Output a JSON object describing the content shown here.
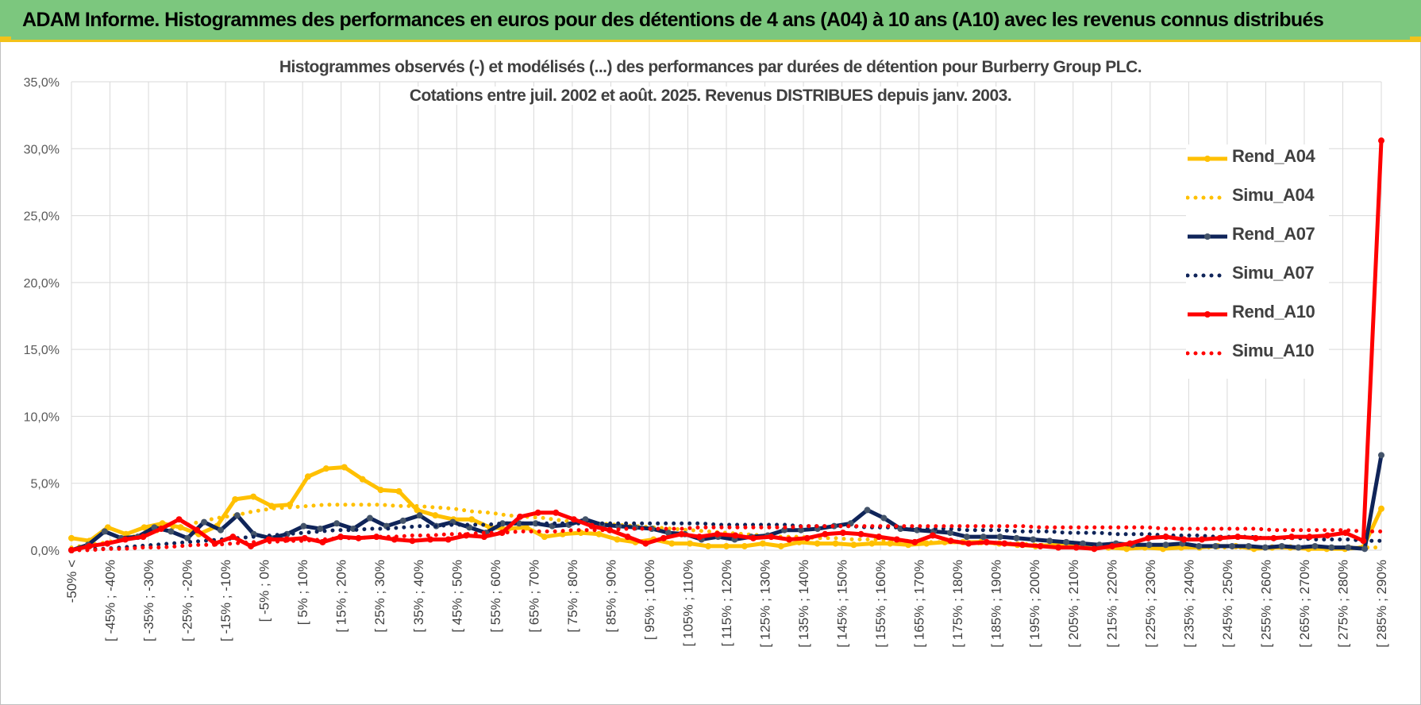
{
  "banner": {
    "title": "ADAM Informe. Histogrammes des performances en euros pour des détentions de 4 ans (A04) à 10 ans (A10) avec les revenus connus distribués"
  },
  "colors": {
    "banner_bg": "#7cc77e",
    "banner_border": "#f3c21a",
    "A04": "#ffc000",
    "A07": "#0f2459",
    "A10": "#ff0000",
    "grid": "#d9d9d9"
  },
  "chart_data": {
    "type": "line",
    "title": "Histogrammes observés (-) et modélisés (...) des performances par durées de détention pour Burberry Group PLC.",
    "subtitle": "Cotations entre juil. 2002 et août. 2025. Revenus DISTRIBUES depuis janv. 2003.",
    "xlabel": "",
    "ylabel": "",
    "ylim": [
      0,
      35
    ],
    "y_ticks": [
      "0,0%",
      "5,0%",
      "10,0%",
      "15,0%",
      "20,0%",
      "25,0%",
      "30,0%",
      "35,0%"
    ],
    "grid": true,
    "legend_position": "right",
    "x_labels_shown": [
      "-50% <",
      "[ -45% ; -40%",
      "[ -35% ; -30%",
      "[ -25% ; -20%",
      "[ -15% ; -10%",
      "[ -5% ; 0%",
      "[ 5% ; 10%",
      "[ 15% ; 20%",
      "[ 25% ; 30%",
      "[ 35% ; 40%",
      "[ 45% ; 50%",
      "[ 55% ; 60%",
      "[ 65% ; 70%",
      "[ 75% ; 80%",
      "[ 85% ; 90%",
      "[ 95% ; 100%",
      "[ 105% ; 110%",
      "[ 115% ; 120%",
      "[ 125% ; 130%",
      "[ 135% ; 140%",
      "[ 145% ; 150%",
      "[ 155% ; 160%",
      "[ 165% ; 170%",
      "[ 175% ; 180%",
      "[ 185% ; 190%",
      "[ 195% ; 200%",
      "[ 205% ; 210%",
      "[ 215% ; 220%",
      "[ 225% ; 230%",
      "[ 235% ; 240%",
      "[ 245% ; 250%",
      "[ 255% ; 260%",
      "[ 265% ; 270%",
      "[ 275% ; 280%",
      "[ 285% ; 290%"
    ],
    "series": [
      {
        "name": "Rend_A04",
        "style": "solid",
        "color": "#ffc000",
        "marker": true,
        "values": [
          0.9,
          0.7,
          1.7,
          1.2,
          1.7,
          2.0,
          1.7,
          1.2,
          1.8,
          3.8,
          4.0,
          3.3,
          3.4,
          5.5,
          6.1,
          6.2,
          5.3,
          4.5,
          4.4,
          3.0,
          2.6,
          2.3,
          2.3,
          1.7,
          1.6,
          1.7,
          1.0,
          1.2,
          1.3,
          1.2,
          0.8,
          0.6,
          0.8,
          0.5,
          0.5,
          0.3,
          0.3,
          0.3,
          0.5,
          0.3,
          0.6,
          0.5,
          0.5,
          0.4,
          0.5,
          0.5,
          0.4,
          0.5,
          0.6,
          0.6,
          0.6,
          0.5,
          0.4,
          0.3,
          0.4,
          0.3,
          0.2,
          0.2,
          0.1,
          0.2,
          0.1,
          0.2,
          0.2,
          0.3,
          0.3,
          0.1,
          0.2,
          0.2,
          0.1,
          0.1,
          0.1,
          0.2,
          3.1
        ]
      },
      {
        "name": "Simu_A04",
        "style": "dotted",
        "color": "#ffc000",
        "marker": false,
        "values": [
          0.2,
          0.4,
          0.6,
          0.9,
          1.2,
          1.5,
          1.8,
          2.1,
          2.4,
          2.6,
          2.9,
          3.1,
          3.2,
          3.3,
          3.4,
          3.4,
          3.4,
          3.4,
          3.3,
          3.3,
          3.2,
          3.1,
          2.9,
          2.8,
          2.6,
          2.5,
          2.4,
          2.2,
          2.1,
          2.0,
          1.9,
          1.8,
          1.7,
          1.6,
          1.5,
          1.4,
          1.3,
          1.2,
          1.1,
          1.0,
          1.0,
          0.9,
          0.9,
          0.8,
          0.8,
          0.7,
          0.7,
          0.6,
          0.6,
          0.6,
          0.5,
          0.5,
          0.5,
          0.4,
          0.4,
          0.4,
          0.4,
          0.3,
          0.3,
          0.3,
          0.3,
          0.3,
          0.2,
          0.2,
          0.2,
          0.2,
          0.2,
          0.2,
          0.2,
          0.2,
          0.2,
          0.2,
          0.2
        ]
      },
      {
        "name": "Rend_A07",
        "style": "solid",
        "color": "#0f2459",
        "marker": true,
        "values": [
          0.0,
          0.4,
          1.4,
          0.9,
          1.0,
          1.7,
          1.4,
          0.9,
          2.1,
          1.5,
          2.6,
          1.2,
          0.9,
          1.2,
          1.8,
          1.6,
          2.0,
          1.6,
          2.4,
          1.8,
          2.2,
          2.6,
          1.8,
          2.1,
          1.7,
          1.3,
          2.0,
          2.0,
          2.0,
          1.8,
          1.9,
          2.3,
          1.9,
          1.8,
          1.7,
          1.6,
          1.3,
          1.2,
          0.8,
          1.0,
          0.8,
          1.0,
          1.1,
          1.5,
          1.5,
          1.6,
          1.8,
          2.0,
          3.0,
          2.4,
          1.6,
          1.5,
          1.4,
          1.3,
          1.0,
          1.0,
          1.0,
          0.9,
          0.8,
          0.7,
          0.6,
          0.5,
          0.4,
          0.5,
          0.4,
          0.4,
          0.4,
          0.5,
          0.3,
          0.3,
          0.3,
          0.3,
          0.2,
          0.3,
          0.2,
          0.3,
          0.2,
          0.2,
          0.1,
          7.1
        ]
      },
      {
        "name": "Simu_A07",
        "style": "dotted",
        "color": "#0f2459",
        "marker": false,
        "values": [
          0.0,
          0.1,
          0.1,
          0.2,
          0.3,
          0.4,
          0.5,
          0.6,
          0.7,
          0.8,
          0.9,
          1.0,
          1.1,
          1.2,
          1.3,
          1.4,
          1.5,
          1.5,
          1.6,
          1.6,
          1.7,
          1.8,
          1.8,
          1.9,
          1.9,
          1.9,
          2.0,
          2.0,
          2.0,
          2.0,
          2.0,
          2.0,
          2.0,
          2.0,
          2.0,
          2.0,
          2.0,
          2.0,
          2.0,
          1.9,
          1.9,
          1.9,
          1.9,
          1.9,
          1.8,
          1.8,
          1.8,
          1.8,
          1.7,
          1.7,
          1.7,
          1.6,
          1.6,
          1.6,
          1.5,
          1.5,
          1.5,
          1.4,
          1.4,
          1.4,
          1.3,
          1.3,
          1.3,
          1.2,
          1.2,
          1.2,
          1.1,
          1.1,
          1.1,
          1.0,
          1.0,
          1.0,
          0.9,
          0.9,
          0.9,
          0.8,
          0.8,
          0.8,
          0.7,
          0.7
        ]
      },
      {
        "name": "Rend_A10",
        "style": "solid",
        "color": "#ff0000",
        "marker": true,
        "values": [
          0.0,
          0.3,
          0.5,
          0.8,
          1.0,
          1.6,
          2.3,
          1.5,
          0.5,
          1.0,
          0.3,
          0.8,
          0.8,
          0.9,
          0.6,
          1.0,
          0.9,
          1.0,
          0.8,
          0.7,
          0.8,
          0.8,
          1.1,
          1.0,
          1.3,
          2.5,
          2.8,
          2.8,
          2.3,
          1.8,
          1.5,
          1.0,
          0.5,
          0.9,
          1.2,
          1.0,
          1.2,
          1.1,
          0.9,
          1.0,
          0.8,
          0.9,
          1.2,
          1.3,
          1.2,
          1.0,
          0.8,
          0.6,
          1.1,
          0.7,
          0.5,
          0.6,
          0.5,
          0.4,
          0.3,
          0.2,
          0.2,
          0.1,
          0.3,
          0.5,
          0.9,
          1.0,
          0.8,
          0.8,
          0.9,
          1.0,
          0.9,
          0.9,
          1.0,
          1.0,
          1.1,
          1.3,
          0.7,
          30.6
        ]
      },
      {
        "name": "Simu_A10",
        "style": "dotted",
        "color": "#ff0000",
        "marker": false,
        "values": [
          0.0,
          0.0,
          0.1,
          0.1,
          0.2,
          0.2,
          0.3,
          0.4,
          0.4,
          0.5,
          0.6,
          0.6,
          0.7,
          0.7,
          0.8,
          0.9,
          0.9,
          1.0,
          1.0,
          1.1,
          1.1,
          1.2,
          1.2,
          1.3,
          1.3,
          1.4,
          1.4,
          1.4,
          1.5,
          1.5,
          1.5,
          1.6,
          1.6,
          1.6,
          1.6,
          1.7,
          1.7,
          1.7,
          1.7,
          1.7,
          1.7,
          1.8,
          1.8,
          1.8,
          1.8,
          1.8,
          1.8,
          1.8,
          1.8,
          1.8,
          1.8,
          1.8,
          1.8,
          1.8,
          1.7,
          1.7,
          1.7,
          1.7,
          1.7,
          1.7,
          1.7,
          1.6,
          1.6,
          1.6,
          1.6,
          1.6,
          1.6,
          1.5,
          1.5,
          1.5,
          1.5,
          1.5,
          1.4,
          1.4
        ]
      }
    ]
  }
}
